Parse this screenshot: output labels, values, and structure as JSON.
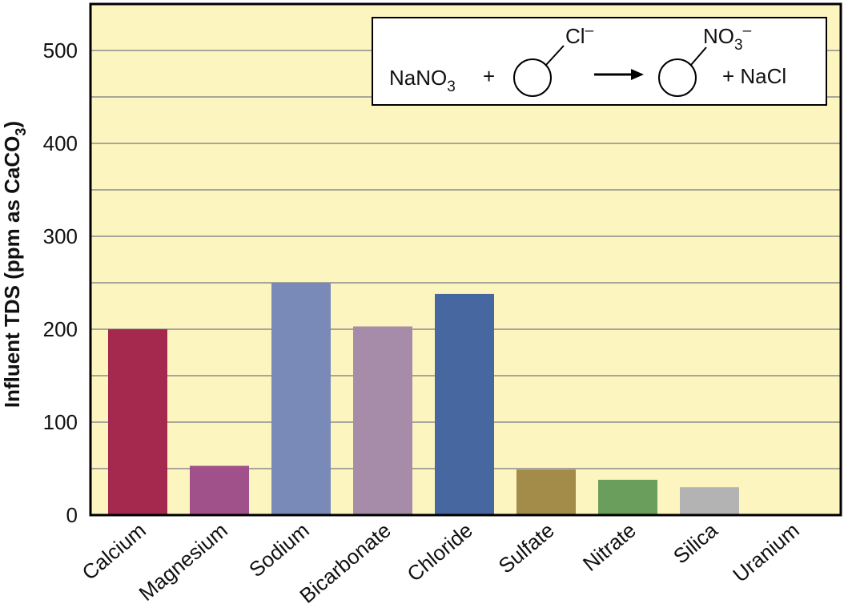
{
  "chart_data": {
    "type": "bar",
    "y_label": [
      "Influent TDS (ppm as CaCO",
      "3",
      ")"
    ],
    "annotation": [
      "NaNO",
      "3",
      "+",
      "Cl",
      "–",
      "NO",
      "3",
      "–",
      "+  NaCl"
    ],
    "categories": [
      "Calcium",
      "Magnesium",
      "Sodium",
      "Bicarbonate",
      "Chloride",
      "Sulfate",
      "Nitrate",
      "Silica",
      "Uranium"
    ],
    "values": [
      200,
      53,
      250,
      203,
      238,
      49,
      38,
      30,
      0
    ],
    "colors": [
      "#a5294f",
      "#a0518a",
      "#7a8ab8",
      "#a68ca9",
      "#4767a0",
      "#a38b4a",
      "#6a9e5c",
      "#b3b3b3",
      "#b3b3b3"
    ],
    "ylim": [
      0,
      550
    ],
    "yticks": [
      0,
      100,
      200,
      300,
      400,
      500
    ],
    "minor_yticks": [
      50,
      150,
      250,
      350,
      450
    ],
    "grid": true
  }
}
